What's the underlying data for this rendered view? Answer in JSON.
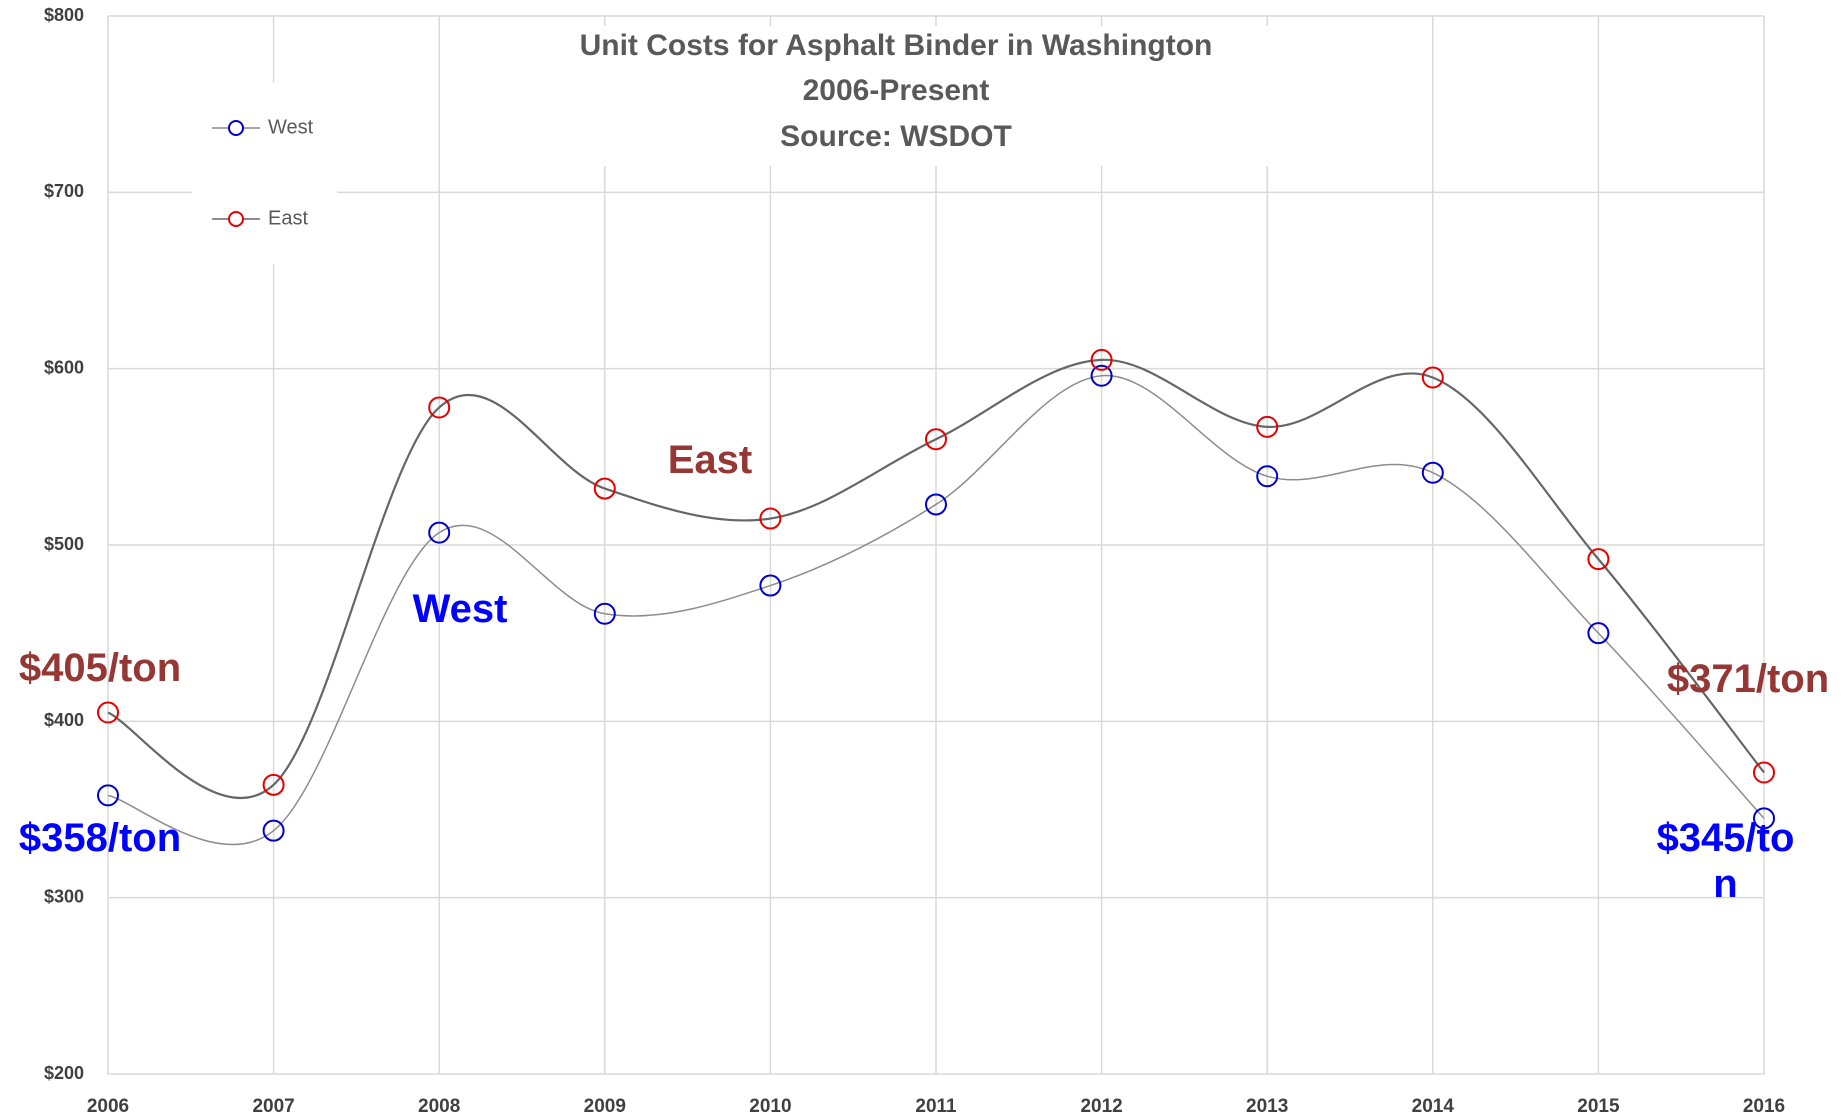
{
  "chart_data": {
    "type": "line",
    "title": "Unit Costs for Asphalt Binder in Washington",
    "subtitle": "2006-Present",
    "source": "Source: WSDOT",
    "categories": [
      "2006",
      "2007",
      "2008",
      "2009",
      "2010",
      "2011",
      "2012",
      "2013",
      "2014",
      "2015",
      "2016"
    ],
    "series": [
      {
        "name": "West",
        "color": "#0000cc",
        "line_color": "#8c8c8c",
        "values": [
          358,
          338,
          507,
          461,
          477,
          523,
          596,
          539,
          541,
          450,
          345
        ]
      },
      {
        "name": "East",
        "color": "#e60000",
        "line_color": "#666666",
        "values": [
          405,
          364,
          578,
          532,
          515,
          560,
          605,
          567,
          595,
          492,
          371
        ]
      }
    ],
    "ylim": [
      200,
      800
    ],
    "yticks": [
      {
        "value": 200,
        "label": "$200"
      },
      {
        "value": 300,
        "label": "$300"
      },
      {
        "value": 400,
        "label": "$400"
      },
      {
        "value": 500,
        "label": "$500"
      },
      {
        "value": 600,
        "label": "$600"
      },
      {
        "value": 700,
        "label": "$700"
      },
      {
        "value": 800,
        "label": "$800"
      }
    ],
    "grid": true,
    "legend": "top-left",
    "annotations": [
      {
        "text": "$405/ton",
        "color": "#953735"
      },
      {
        "text": "$358/ton",
        "color": "#0000ff"
      },
      {
        "text": "East",
        "color": "#953735"
      },
      {
        "text": "West",
        "color": "#0000ff"
      },
      {
        "text": "$371/ton",
        "color": "#953735"
      },
      {
        "text": "$345/ton",
        "color": "#0000ff"
      }
    ]
  }
}
